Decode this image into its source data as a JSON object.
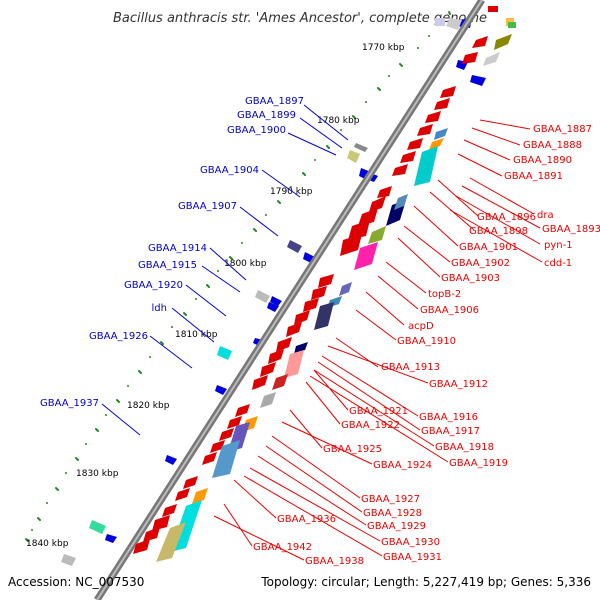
{
  "title": "Bacillus anthracis str. 'Ames Ancestor', complete genome",
  "footer": {
    "accession": "Accession: NC_007530",
    "summary": "Topology: circular; Length: 5,227,419 bp; Genes: 5,336"
  },
  "colors": {
    "forward_gene": "#dd0000",
    "reverse_gene": "#0000dd",
    "forward_label": "#ee0000",
    "reverse_label": "#0000cc",
    "tick": "#228822",
    "backbone": "#888888"
  },
  "scale_labels": [
    "1770 kbp",
    "1780 kbp",
    "1790 kbp",
    "1800 kbp",
    "1810 kbp",
    "1820 kbp",
    "1830 kbp",
    "1840 kbp"
  ],
  "left_labels": [
    "GBAA_1897",
    "GBAA_1899",
    "GBAA_1900",
    "GBAA_1904",
    "GBAA_1907",
    "GBAA_1914",
    "GBAA_1915",
    "GBAA_1920",
    "ldh",
    "GBAA_1926",
    "GBAA_1937"
  ],
  "right_labels": [
    "GBAA_1887",
    "GBAA_1888",
    "GBAA_1890",
    "GBAA_1891",
    "dra",
    "GBAA_1896",
    "GBAA_1893",
    "GBAA_1898",
    "pyn-1",
    "GBAA_1901",
    "cdd-1",
    "GBAA_1902",
    "GBAA_1903",
    "topB-2",
    "GBAA_1906",
    "acpD",
    "GBAA_1910",
    "GBAA_1913",
    "GBAA_1912",
    "GBAA_1921",
    "GBAA_1916",
    "GBAA_1922",
    "GBAA_1917",
    "GBAA_1918",
    "GBAA_1925",
    "GBAA_1919",
    "GBAA_1924",
    "GBAA_1927",
    "GBAA_1928",
    "GBAA_1936",
    "GBAA_1929",
    "GBAA_1930",
    "GBAA_1942",
    "GBAA_1931",
    "GBAA_1938"
  ]
}
